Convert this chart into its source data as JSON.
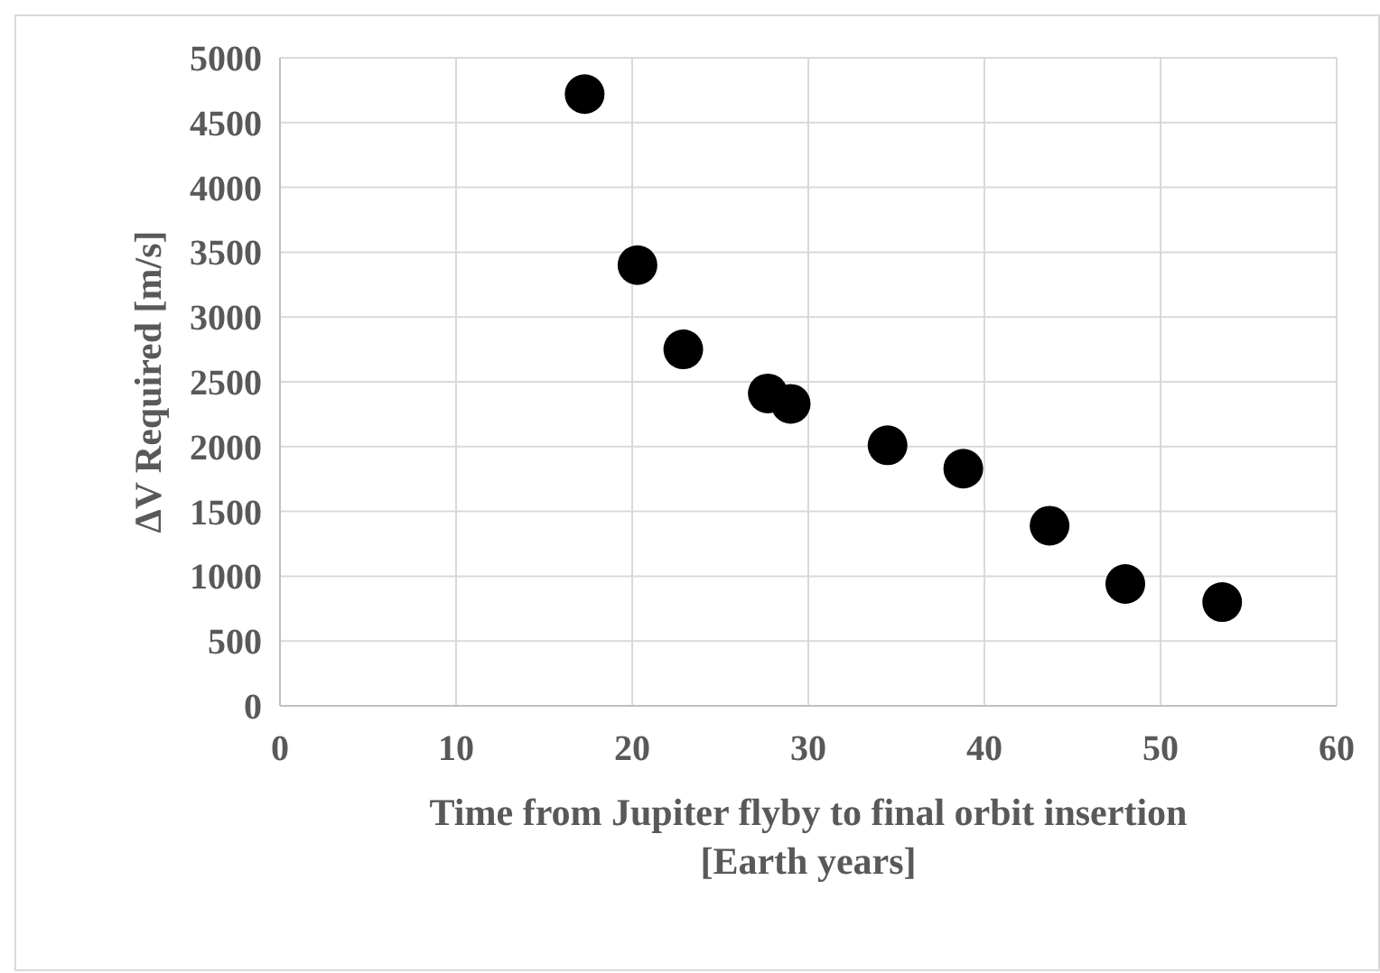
{
  "chart_data": {
    "type": "scatter",
    "xlabel": "Time from Jupiter flyby to final orbit insertion\n[Earth years]",
    "ylabel": "ΔV Required [m/s]",
    "x": [
      17.3,
      20.3,
      22.9,
      27.7,
      29.0,
      34.5,
      38.8,
      43.7,
      48.0,
      53.5
    ],
    "series": [
      {
        "color": "#000000",
        "values": [
          4720,
          3400,
          2750,
          2410,
          2330,
          2010,
          1830,
          1390,
          940,
          800
        ]
      }
    ],
    "xlim": [
      0,
      60
    ],
    "xticks": [
      0,
      10,
      20,
      30,
      40,
      50,
      60
    ],
    "ylim": [
      0,
      5000
    ],
    "yticks": [
      0,
      500,
      1000,
      1500,
      2000,
      2500,
      3000,
      3500,
      4000,
      4500,
      5000
    ],
    "grid": true,
    "marker": "circle"
  }
}
